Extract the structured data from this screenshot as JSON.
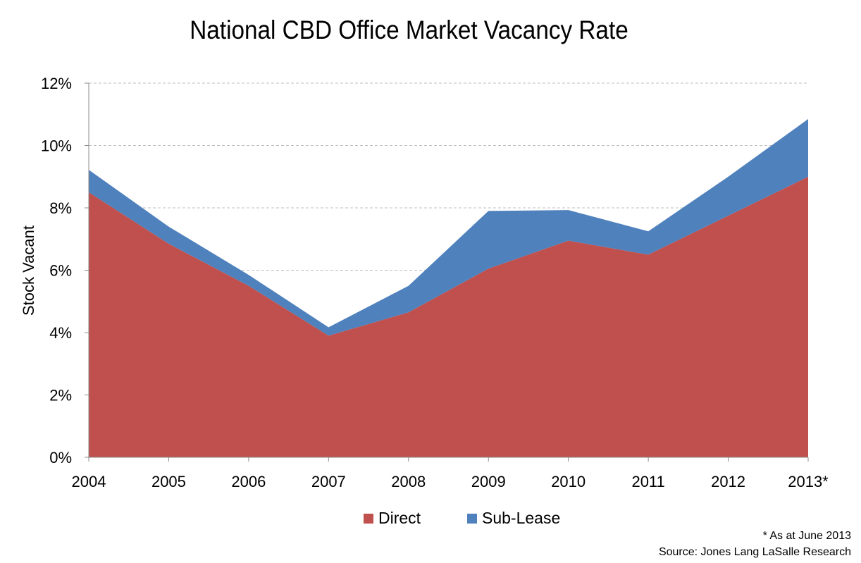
{
  "chart_data": {
    "type": "area",
    "stacked": true,
    "title": "National CBD Office Market Vacancy Rate",
    "ylabel": "Stock Vacant",
    "xlabel": "",
    "categories": [
      "2004",
      "2005",
      "2006",
      "2007",
      "2008",
      "2009",
      "2010",
      "2011",
      "2012",
      "2013*"
    ],
    "ylim": [
      0,
      12
    ],
    "yticks": [
      0,
      2,
      4,
      6,
      8,
      10,
      12
    ],
    "ytick_labels": [
      "0%",
      "2%",
      "4%",
      "6%",
      "8%",
      "10%",
      "12%"
    ],
    "grid": "horizontal dashed",
    "legend_position": "bottom",
    "series": [
      {
        "name": "Direct",
        "color": "#c0504d",
        "values": [
          8.5,
          6.85,
          5.5,
          3.9,
          4.65,
          6.05,
          6.95,
          6.5,
          7.75,
          9.0
        ]
      },
      {
        "name": "Sub-Lease",
        "color": "#4f81bd",
        "values": [
          0.72,
          0.55,
          0.35,
          0.27,
          0.85,
          1.85,
          0.98,
          0.75,
          1.25,
          1.85
        ]
      }
    ],
    "footnotes": [
      "* As at June 2013",
      "Source: Jones Lang LaSalle Research"
    ]
  }
}
